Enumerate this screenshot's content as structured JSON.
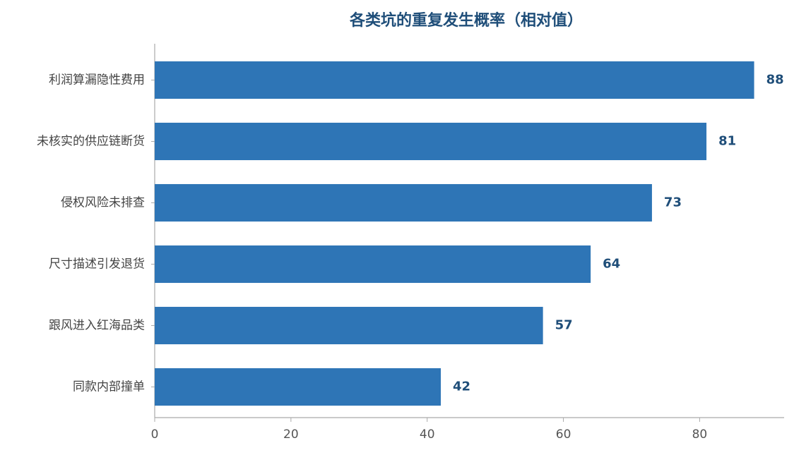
{
  "chart_data": {
    "type": "barh",
    "title": "各类坑的重复发生概率（相对值）",
    "categories": [
      "利润算漏隐性费用",
      "未核实的供应链断货",
      "侵权风险未排查",
      "尺寸描述引发退货",
      "跟风进入红海品类",
      "同款内部撞单"
    ],
    "values": [
      88,
      81,
      73,
      64,
      57,
      42
    ],
    "color": "#2e75b6",
    "xlim": [
      0,
      92.4
    ],
    "xticks": [
      0,
      20,
      40,
      60,
      80
    ],
    "grid": false
  }
}
